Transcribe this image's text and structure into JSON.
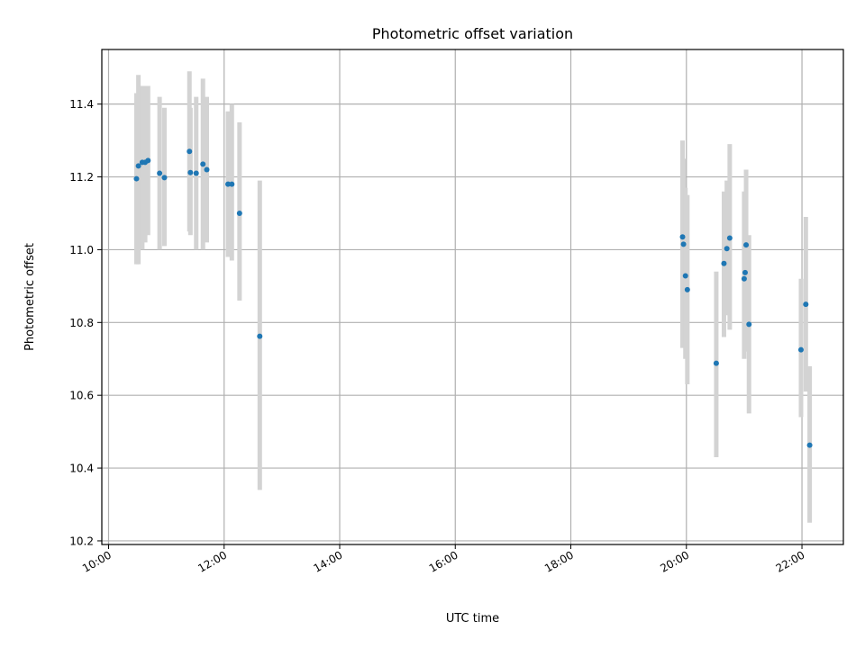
{
  "chart_data": {
    "type": "scatter",
    "title": "Photometric offset variation",
    "xlabel": "UTC time",
    "ylabel": "Photometric offset",
    "x_tick_labels": [
      "10:00",
      "12:00",
      "14:00",
      "16:00",
      "18:00",
      "20:00",
      "22:00"
    ],
    "y_tick_labels": [
      "10.2",
      "10.4",
      "10.6",
      "10.8",
      "11.0",
      "11.2",
      "11.4"
    ],
    "grid": true,
    "ylim": [
      10.19,
      11.55
    ],
    "xlim": [
      "09:53",
      "22:43"
    ],
    "marker_color": "#1f77b4",
    "errorbar_color": "#d3d3d3",
    "points": [
      {
        "x": "10:29",
        "y": 11.195,
        "yerr_low": 10.96,
        "yerr_high": 11.43
      },
      {
        "x": "10:31",
        "y": 11.23,
        "yerr_low": 10.96,
        "yerr_high": 11.48
      },
      {
        "x": "10:35",
        "y": 11.24,
        "yerr_low": 11.0,
        "yerr_high": 11.45
      },
      {
        "x": "10:38",
        "y": 11.24,
        "yerr_low": 11.02,
        "yerr_high": 11.45
      },
      {
        "x": "10:41",
        "y": 11.245,
        "yerr_low": 11.04,
        "yerr_high": 11.45
      },
      {
        "x": "10:53",
        "y": 11.21,
        "yerr_low": 11.0,
        "yerr_high": 11.42
      },
      {
        "x": "10:58",
        "y": 11.198,
        "yerr_low": 11.01,
        "yerr_high": 11.39
      },
      {
        "x": "11:24",
        "y": 11.27,
        "yerr_low": 11.05,
        "yerr_high": 11.49
      },
      {
        "x": "11:25",
        "y": 11.212,
        "yerr_low": 11.04,
        "yerr_high": 11.39
      },
      {
        "x": "11:31",
        "y": 11.21,
        "yerr_low": 11.0,
        "yerr_high": 11.42
      },
      {
        "x": "11:38",
        "y": 11.235,
        "yerr_low": 11.0,
        "yerr_high": 11.47
      },
      {
        "x": "11:42",
        "y": 11.22,
        "yerr_low": 11.02,
        "yerr_high": 11.42
      },
      {
        "x": "12:04",
        "y": 11.18,
        "yerr_low": 10.98,
        "yerr_high": 11.38
      },
      {
        "x": "12:08",
        "y": 11.18,
        "yerr_low": 10.97,
        "yerr_high": 11.4
      },
      {
        "x": "12:16",
        "y": 11.1,
        "yerr_low": 10.86,
        "yerr_high": 11.35
      },
      {
        "x": "12:37",
        "y": 10.762,
        "yerr_low": 10.34,
        "yerr_high": 11.19
      },
      {
        "x": "19:56",
        "y": 11.035,
        "yerr_low": 10.73,
        "yerr_high": 11.3
      },
      {
        "x": "19:57",
        "y": 11.015,
        "yerr_low": 10.78,
        "yerr_high": 11.25
      },
      {
        "x": "19:59",
        "y": 10.928,
        "yerr_low": 10.7,
        "yerr_high": 11.17
      },
      {
        "x": "20:01",
        "y": 10.89,
        "yerr_low": 10.63,
        "yerr_high": 11.15
      },
      {
        "x": "20:31",
        "y": 10.688,
        "yerr_low": 10.43,
        "yerr_high": 10.94
      },
      {
        "x": "20:39",
        "y": 10.962,
        "yerr_low": 10.76,
        "yerr_high": 11.16
      },
      {
        "x": "20:42",
        "y": 11.003,
        "yerr_low": 10.82,
        "yerr_high": 11.19
      },
      {
        "x": "20:45",
        "y": 11.032,
        "yerr_low": 10.78,
        "yerr_high": 11.29
      },
      {
        "x": "21:00",
        "y": 10.92,
        "yerr_low": 10.7,
        "yerr_high": 11.16
      },
      {
        "x": "21:01",
        "y": 10.937,
        "yerr_low": 10.72,
        "yerr_high": 11.15
      },
      {
        "x": "21:02",
        "y": 11.013,
        "yerr_low": 10.8,
        "yerr_high": 11.22
      },
      {
        "x": "21:05",
        "y": 10.795,
        "yerr_low": 10.55,
        "yerr_high": 11.04
      },
      {
        "x": "21:59",
        "y": 10.725,
        "yerr_low": 10.54,
        "yerr_high": 10.92
      },
      {
        "x": "22:04",
        "y": 10.85,
        "yerr_low": 10.61,
        "yerr_high": 11.09
      },
      {
        "x": "22:08",
        "y": 10.463,
        "yerr_low": 10.25,
        "yerr_high": 10.68
      }
    ]
  }
}
